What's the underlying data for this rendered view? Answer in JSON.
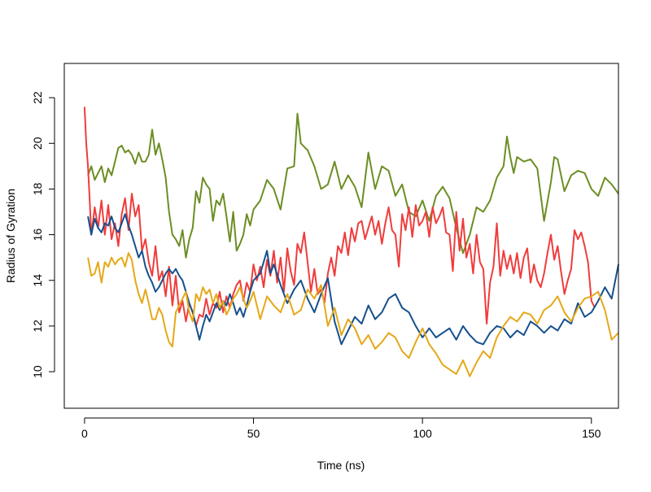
{
  "chart_data": {
    "type": "line",
    "title": "",
    "xlabel": "Time (ns)",
    "ylabel": "Radius of Gyration",
    "xlim": [
      -6,
      158
    ],
    "ylim": [
      8.4,
      23.5
    ],
    "x_ticks": [
      0,
      50,
      100,
      150
    ],
    "y_ticks": [
      10,
      12,
      14,
      16,
      18,
      20,
      22
    ],
    "grid": false,
    "legend": "none",
    "series": [
      {
        "color": "#6b8e23",
        "x": [
          1,
          2,
          3,
          5,
          6,
          7,
          8,
          9,
          10,
          11,
          12,
          13,
          14,
          15,
          16,
          17,
          18,
          19,
          20,
          21,
          22,
          23,
          24,
          25,
          26,
          27,
          28,
          29,
          30,
          31,
          32,
          33,
          34,
          35,
          36,
          37,
          38,
          39,
          40,
          41,
          42,
          43,
          44,
          45,
          46,
          47,
          48,
          49,
          50,
          52,
          54,
          56,
          58,
          60,
          62,
          63,
          64,
          66,
          68,
          70,
          72,
          74,
          76,
          78,
          80,
          82,
          84,
          86,
          88,
          90,
          92,
          94,
          96,
          98,
          100,
          102,
          104,
          106,
          108,
          110,
          112,
          114,
          116,
          118,
          120,
          122,
          124,
          125,
          126,
          127,
          128,
          130,
          132,
          134,
          136,
          138,
          139,
          140,
          142,
          144,
          146,
          148,
          150,
          152,
          154,
          156,
          158
        ],
        "values": [
          18.6,
          19.0,
          18.4,
          19.0,
          18.3,
          18.9,
          18.6,
          19.2,
          19.8,
          19.9,
          19.6,
          19.7,
          19.5,
          19.1,
          19.6,
          19.2,
          19.2,
          19.5,
          20.6,
          19.5,
          20.0,
          19.3,
          18.5,
          17.0,
          16.0,
          15.8,
          15.5,
          16.2,
          15.0,
          15.8,
          16.3,
          17.9,
          17.4,
          18.5,
          18.2,
          18.0,
          16.6,
          17.5,
          17.3,
          17.8,
          16.8,
          15.7,
          17.0,
          15.3,
          15.6,
          16.0,
          16.9,
          16.4,
          17.1,
          17.5,
          18.4,
          18.0,
          17.1,
          18.9,
          19.0,
          21.3,
          20.0,
          19.7,
          19.0,
          18.0,
          18.2,
          19.2,
          18.0,
          18.6,
          18.1,
          17.2,
          19.6,
          18.0,
          19.0,
          18.8,
          17.7,
          18.2,
          17.0,
          16.8,
          17.5,
          16.6,
          17.7,
          18.1,
          17.6,
          16.3,
          15.2,
          16.0,
          17.2,
          17.0,
          17.5,
          18.5,
          19.0,
          20.3,
          19.4,
          18.7,
          19.4,
          19.2,
          19.3,
          18.9,
          16.6,
          18.3,
          19.4,
          19.3,
          17.9,
          18.6,
          18.8,
          18.7,
          18.0,
          17.7,
          18.5,
          18.2,
          17.8
        ]
      },
      {
        "color": "#f03c3c",
        "x": [
          0,
          0.5,
          1,
          1.5,
          2,
          3,
          4,
          5,
          6,
          7,
          8,
          9,
          10,
          11,
          12,
          13,
          14,
          15,
          16,
          17,
          18,
          19,
          20,
          21,
          22,
          23,
          24,
          25,
          26,
          27,
          28,
          29,
          30,
          31,
          32,
          33,
          34,
          35,
          36,
          37,
          38,
          39,
          40,
          41,
          42,
          43,
          44,
          45,
          46,
          47,
          48,
          49,
          50,
          51,
          52,
          53,
          54,
          55,
          56,
          57,
          58,
          59,
          60,
          61,
          62,
          63,
          64,
          65,
          66,
          67,
          68,
          69,
          70,
          71,
          72,
          73,
          74,
          75,
          76,
          77,
          78,
          79,
          80,
          81,
          82,
          83,
          84,
          85,
          86,
          87,
          88,
          89,
          90,
          91,
          92,
          93,
          94,
          95,
          96,
          97,
          98,
          99,
          100,
          101,
          102,
          103,
          104,
          105,
          106,
          107,
          108,
          109,
          110,
          111,
          112,
          113,
          114,
          115,
          116,
          117,
          118,
          119,
          120,
          121,
          122,
          123,
          124,
          125,
          126,
          127,
          128,
          129,
          130,
          131,
          132,
          133,
          134,
          135,
          136,
          137,
          138,
          139,
          140,
          141,
          142,
          143,
          144,
          145,
          146,
          147,
          148,
          149,
          150,
          151
        ],
        "values": [
          21.6,
          20.0,
          19.0,
          17.6,
          16.0,
          17.2,
          16.3,
          17.5,
          16.0,
          17.3,
          15.8,
          16.5,
          15.5,
          16.9,
          17.6,
          16.2,
          17.8,
          16.8,
          17.3,
          15.3,
          15.8,
          14.8,
          14.2,
          15.5,
          14.0,
          14.4,
          13.3,
          14.6,
          12.9,
          14.2,
          12.6,
          13.1,
          12.2,
          13.0,
          12.6,
          12.0,
          12.5,
          12.4,
          13.2,
          12.5,
          13.0,
          12.8,
          13.5,
          12.6,
          13.3,
          12.8,
          13.4,
          13.8,
          14.0,
          13.1,
          13.9,
          13.5,
          14.7,
          14.0,
          14.6,
          13.7,
          14.9,
          14.2,
          15.3,
          13.9,
          15.0,
          13.5,
          15.4,
          14.4,
          13.8,
          15.6,
          15.2,
          16.1,
          14.8,
          13.5,
          14.5,
          13.4,
          13.6,
          13.0,
          14.3,
          15.0,
          14.2,
          15.5,
          15.2,
          16.1,
          15.1,
          16.3,
          15.7,
          16.5,
          16.6,
          15.8,
          16.3,
          16.8,
          16.0,
          16.6,
          15.6,
          16.5,
          17.2,
          16.2,
          16.0,
          14.6,
          16.9,
          16.2,
          17.2,
          15.9,
          17.3,
          16.4,
          16.6,
          17.0,
          15.9,
          17.2,
          16.5,
          16.8,
          17.2,
          16.1,
          16.0,
          14.4,
          17.0,
          15.3,
          16.7,
          15.0,
          15.6,
          14.3,
          16.0,
          14.8,
          14.5,
          12.1,
          13.9,
          14.6,
          16.5,
          14.2,
          15.3,
          14.5,
          15.1,
          14.3,
          15.2,
          14.1,
          15.0,
          15.4,
          13.9,
          14.7,
          14.0,
          13.7,
          14.3,
          15.2,
          16.0,
          14.9,
          15.5,
          14.4,
          13.4,
          14.0,
          14.5,
          16.2,
          15.8,
          16.1,
          15.5,
          14.8,
          13.1,
          12.8
        ]
      },
      {
        "color": "#16508c",
        "x": [
          1,
          2,
          3,
          4,
          5,
          6,
          7,
          8,
          9,
          10,
          11,
          12,
          13,
          14,
          15,
          16,
          17,
          18,
          19,
          20,
          21,
          22,
          23,
          24,
          25,
          26,
          27,
          28,
          29,
          30,
          31,
          32,
          33,
          34,
          35,
          36,
          37,
          38,
          39,
          40,
          41,
          42,
          43,
          44,
          45,
          46,
          47,
          48,
          49,
          50,
          52,
          54,
          55,
          56,
          58,
          60,
          62,
          64,
          66,
          68,
          70,
          72,
          74,
          76,
          78,
          80,
          82,
          84,
          86,
          88,
          90,
          92,
          94,
          96,
          98,
          100,
          102,
          104,
          106,
          108,
          110,
          112,
          114,
          116,
          118,
          120,
          122,
          124,
          126,
          128,
          130,
          132,
          134,
          136,
          138,
          140,
          142,
          144,
          146,
          148,
          150,
          152,
          154,
          156,
          158
        ],
        "values": [
          16.8,
          16.0,
          16.7,
          16.3,
          16.1,
          16.5,
          16.4,
          16.8,
          16.3,
          16.1,
          16.5,
          16.9,
          16.4,
          16.0,
          15.5,
          15.0,
          15.3,
          14.6,
          14.2,
          13.9,
          13.5,
          13.7,
          14.0,
          14.3,
          14.5,
          14.3,
          14.5,
          14.2,
          14.0,
          13.5,
          13.0,
          12.6,
          12.0,
          11.4,
          12.0,
          12.5,
          12.2,
          12.6,
          13.0,
          12.7,
          13.1,
          12.9,
          13.4,
          13.0,
          12.5,
          12.8,
          12.4,
          12.9,
          13.5,
          14.0,
          14.3,
          15.3,
          14.3,
          14.7,
          13.8,
          13.0,
          13.6,
          14.0,
          13.2,
          12.6,
          13.4,
          14.1,
          12.2,
          11.2,
          11.8,
          12.4,
          12.1,
          12.9,
          12.3,
          12.6,
          13.2,
          13.4,
          12.8,
          12.6,
          12.0,
          11.5,
          11.9,
          11.5,
          11.7,
          11.9,
          11.4,
          12.0,
          11.6,
          11.3,
          11.2,
          11.7,
          12.0,
          11.9,
          11.5,
          11.8,
          11.6,
          12.2,
          12.0,
          11.7,
          12.0,
          11.8,
          12.3,
          12.1,
          13.0,
          12.4,
          12.6,
          13.1,
          13.7,
          13.2,
          14.7
        ]
      },
      {
        "color": "#e5a818",
        "x": [
          1,
          2,
          3,
          4,
          5,
          6,
          7,
          8,
          9,
          10,
          11,
          12,
          13,
          14,
          15,
          16,
          17,
          18,
          19,
          20,
          21,
          22,
          23,
          24,
          25,
          26,
          27,
          28,
          29,
          30,
          31,
          32,
          33,
          34,
          35,
          36,
          37,
          38,
          39,
          40,
          41,
          42,
          43,
          44,
          45,
          46,
          47,
          48,
          49,
          50,
          52,
          54,
          56,
          58,
          60,
          62,
          64,
          66,
          68,
          70,
          72,
          74,
          76,
          78,
          80,
          82,
          84,
          86,
          88,
          90,
          92,
          94,
          96,
          98,
          100,
          102,
          104,
          106,
          108,
          110,
          112,
          114,
          116,
          118,
          120,
          122,
          124,
          126,
          128,
          130,
          132,
          134,
          136,
          138,
          140,
          142,
          144,
          146,
          148,
          150,
          152,
          154,
          156,
          158
        ],
        "values": [
          15.0,
          14.2,
          14.3,
          14.8,
          13.9,
          14.8,
          14.6,
          15.0,
          14.7,
          14.9,
          15.0,
          14.6,
          15.2,
          14.9,
          14.0,
          13.4,
          13.0,
          13.6,
          13.0,
          12.3,
          12.3,
          12.8,
          12.5,
          11.8,
          11.3,
          11.1,
          12.6,
          12.9,
          13.2,
          13.5,
          12.6,
          12.2,
          13.4,
          13.1,
          13.7,
          13.4,
          13.6,
          13.0,
          13.4,
          12.8,
          13.1,
          12.5,
          12.8,
          13.2,
          13.4,
          13.7,
          13.2,
          12.8,
          13.1,
          13.5,
          12.3,
          13.3,
          12.9,
          12.6,
          13.4,
          12.5,
          12.7,
          13.6,
          13.2,
          13.8,
          12.0,
          12.8,
          11.6,
          12.3,
          11.9,
          11.2,
          11.6,
          11.0,
          11.3,
          11.7,
          11.5,
          10.9,
          10.6,
          11.3,
          11.9,
          11.2,
          10.8,
          10.3,
          10.1,
          9.9,
          10.5,
          9.8,
          10.4,
          10.9,
          10.6,
          11.5,
          12.0,
          12.4,
          12.2,
          12.6,
          12.5,
          12.1,
          12.7,
          12.9,
          13.3,
          12.6,
          12.2,
          12.8,
          13.2,
          13.3,
          13.5,
          12.7,
          11.4,
          11.7
        ]
      }
    ]
  }
}
